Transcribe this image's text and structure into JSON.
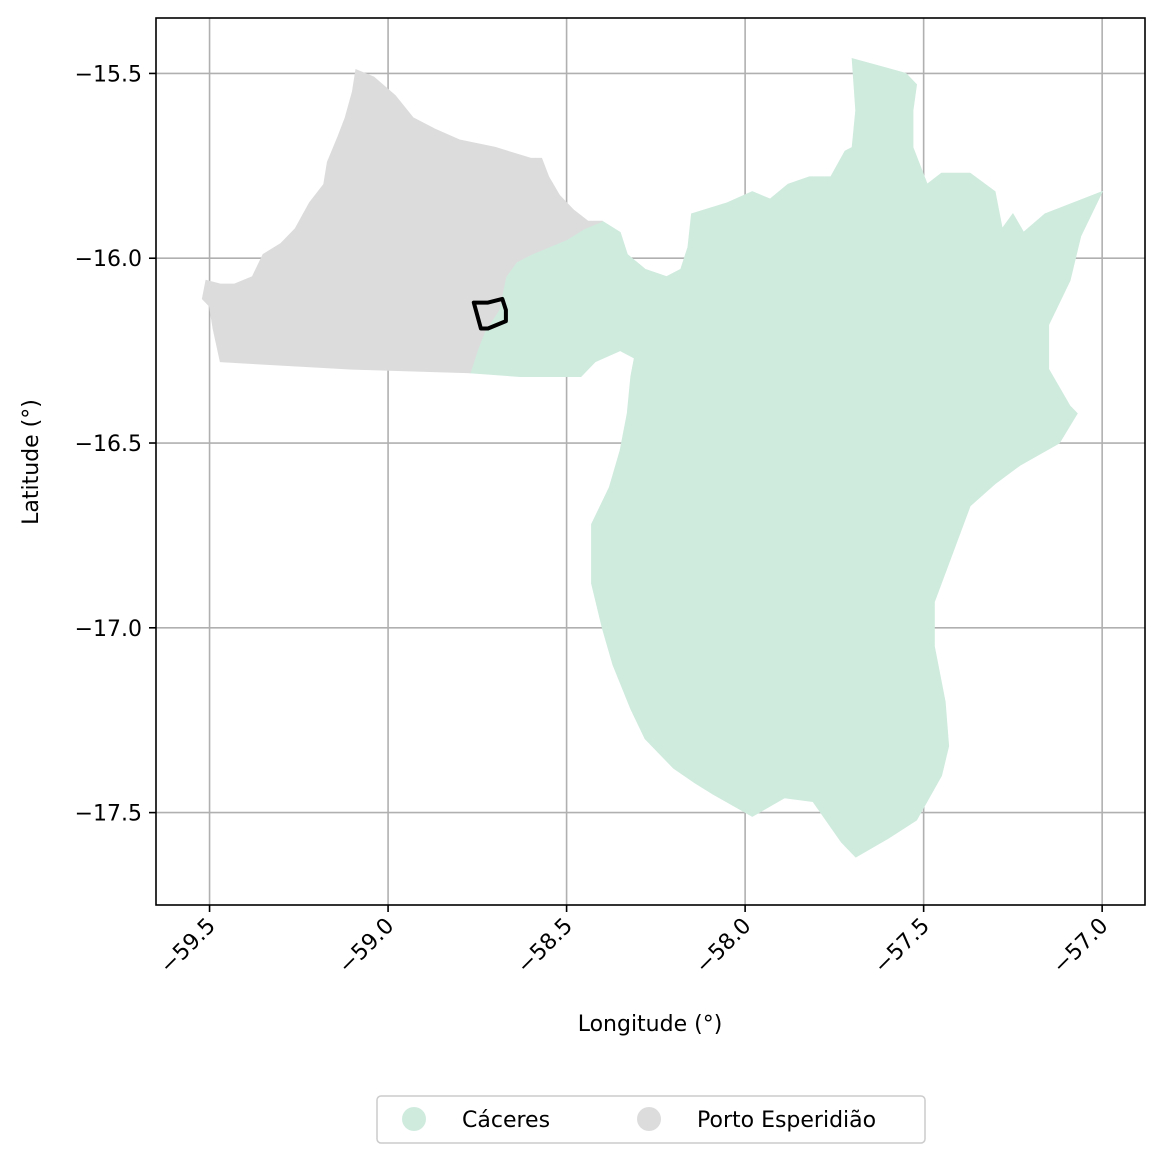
{
  "chart_data": {
    "type": "map",
    "xlabel": "Longitude (°)",
    "ylabel": "Latitude (°)",
    "xlim": [
      -59.65,
      -56.88
    ],
    "ylim": [
      -17.75,
      -15.35
    ],
    "x_ticks": [
      -59.5,
      -59.0,
      -58.5,
      -58.0,
      -57.5,
      -57.0
    ],
    "x_tick_labels": [
      "−59.5",
      "−59.0",
      "−58.5",
      "−58.0",
      "−57.5",
      "−57.0"
    ],
    "y_ticks": [
      -15.5,
      -16.0,
      -16.5,
      -17.0,
      -17.5
    ],
    "y_tick_labels": [
      "−15.5",
      "−16.0",
      "−16.5",
      "−17.0",
      "−17.5"
    ],
    "grid": true,
    "legend_position": "bottom-center",
    "regions": [
      {
        "name": "Cáceres",
        "color": "#cfebde",
        "coords": [
          [
            -58.77,
            -16.31
          ],
          [
            -58.75,
            -16.25
          ],
          [
            -58.73,
            -16.2
          ],
          [
            -58.69,
            -16.14
          ],
          [
            -58.67,
            -16.05
          ],
          [
            -58.64,
            -16.01
          ],
          [
            -58.6,
            -15.99
          ],
          [
            -58.5,
            -15.95
          ],
          [
            -58.45,
            -15.92
          ],
          [
            -58.4,
            -15.9
          ],
          [
            -58.35,
            -15.93
          ],
          [
            -58.33,
            -15.99
          ],
          [
            -58.28,
            -16.03
          ],
          [
            -58.22,
            -16.05
          ],
          [
            -58.18,
            -16.03
          ],
          [
            -58.16,
            -15.97
          ],
          [
            -58.15,
            -15.88
          ],
          [
            -58.05,
            -15.85
          ],
          [
            -57.98,
            -15.82
          ],
          [
            -57.93,
            -15.84
          ],
          [
            -57.88,
            -15.8
          ],
          [
            -57.82,
            -15.78
          ],
          [
            -57.76,
            -15.78
          ],
          [
            -57.72,
            -15.71
          ],
          [
            -57.7,
            -15.7
          ],
          [
            -57.69,
            -15.6
          ],
          [
            -57.7,
            -15.46
          ],
          [
            -57.55,
            -15.5
          ],
          [
            -57.52,
            -15.53
          ],
          [
            -57.53,
            -15.6
          ],
          [
            -57.53,
            -15.7
          ],
          [
            -57.49,
            -15.8
          ],
          [
            -57.45,
            -15.77
          ],
          [
            -57.37,
            -15.77
          ],
          [
            -57.3,
            -15.82
          ],
          [
            -57.28,
            -15.92
          ],
          [
            -57.25,
            -15.88
          ],
          [
            -57.22,
            -15.93
          ],
          [
            -57.16,
            -15.88
          ],
          [
            -57.0,
            -15.82
          ],
          [
            -57.06,
            -15.94
          ],
          [
            -57.09,
            -16.06
          ],
          [
            -57.15,
            -16.18
          ],
          [
            -57.15,
            -16.3
          ],
          [
            -57.09,
            -16.4
          ],
          [
            -57.07,
            -16.42
          ],
          [
            -57.12,
            -16.5
          ],
          [
            -57.23,
            -16.56
          ],
          [
            -57.3,
            -16.61
          ],
          [
            -57.37,
            -16.67
          ],
          [
            -57.42,
            -16.8
          ],
          [
            -57.47,
            -16.93
          ],
          [
            -57.47,
            -17.05
          ],
          [
            -57.44,
            -17.2
          ],
          [
            -57.43,
            -17.32
          ],
          [
            -57.45,
            -17.4
          ],
          [
            -57.52,
            -17.52
          ],
          [
            -57.6,
            -17.57
          ],
          [
            -57.69,
            -17.62
          ],
          [
            -57.73,
            -17.58
          ],
          [
            -57.81,
            -17.47
          ],
          [
            -57.89,
            -17.46
          ],
          [
            -57.98,
            -17.51
          ],
          [
            -58.09,
            -17.45
          ],
          [
            -58.14,
            -17.42
          ],
          [
            -58.2,
            -17.38
          ],
          [
            -58.28,
            -17.3
          ],
          [
            -58.32,
            -17.22
          ],
          [
            -58.37,
            -17.1
          ],
          [
            -58.4,
            -17.0
          ],
          [
            -58.43,
            -16.88
          ],
          [
            -58.43,
            -16.72
          ],
          [
            -58.38,
            -16.62
          ],
          [
            -58.35,
            -16.52
          ],
          [
            -58.33,
            -16.42
          ],
          [
            -58.32,
            -16.32
          ],
          [
            -58.31,
            -16.27
          ],
          [
            -58.35,
            -16.25
          ],
          [
            -58.42,
            -16.28
          ],
          [
            -58.46,
            -16.32
          ],
          [
            -58.55,
            -16.32
          ],
          [
            -58.63,
            -16.32
          ]
        ]
      },
      {
        "name": "Porto Esperidião",
        "color": "#dcdcdc",
        "coords": [
          [
            -59.47,
            -16.28
          ],
          [
            -59.49,
            -16.19
          ],
          [
            -59.5,
            -16.13
          ],
          [
            -59.52,
            -16.11
          ],
          [
            -59.51,
            -16.06
          ],
          [
            -59.47,
            -16.07
          ],
          [
            -59.43,
            -16.07
          ],
          [
            -59.38,
            -16.05
          ],
          [
            -59.35,
            -15.99
          ],
          [
            -59.3,
            -15.96
          ],
          [
            -59.26,
            -15.92
          ],
          [
            -59.22,
            -15.85
          ],
          [
            -59.18,
            -15.8
          ],
          [
            -59.17,
            -15.74
          ],
          [
            -59.14,
            -15.67
          ],
          [
            -59.12,
            -15.62
          ],
          [
            -59.1,
            -15.55
          ],
          [
            -59.09,
            -15.49
          ],
          [
            -59.04,
            -15.51
          ],
          [
            -58.98,
            -15.56
          ],
          [
            -58.93,
            -15.62
          ],
          [
            -58.87,
            -15.65
          ],
          [
            -58.8,
            -15.68
          ],
          [
            -58.7,
            -15.7
          ],
          [
            -58.6,
            -15.73
          ],
          [
            -58.57,
            -15.73
          ],
          [
            -58.55,
            -15.78
          ],
          [
            -58.52,
            -15.83
          ],
          [
            -58.48,
            -15.87
          ],
          [
            -58.44,
            -15.9
          ],
          [
            -58.4,
            -15.9
          ],
          [
            -58.45,
            -15.92
          ],
          [
            -58.5,
            -15.95
          ],
          [
            -58.6,
            -15.99
          ],
          [
            -58.64,
            -16.01
          ],
          [
            -58.67,
            -16.05
          ],
          [
            -58.69,
            -16.14
          ],
          [
            -58.73,
            -16.2
          ],
          [
            -58.75,
            -16.25
          ],
          [
            -58.77,
            -16.31
          ],
          [
            -59.1,
            -16.3
          ]
        ]
      }
    ],
    "highlight_outline": {
      "color": "#000000",
      "coords": [
        [
          -58.76,
          -16.12
        ],
        [
          -58.72,
          -16.12
        ],
        [
          -58.68,
          -16.11
        ],
        [
          -58.67,
          -16.14
        ],
        [
          -58.67,
          -16.17
        ],
        [
          -58.72,
          -16.19
        ],
        [
          -58.74,
          -16.19
        ]
      ]
    },
    "legend": [
      {
        "label": "Cáceres",
        "color": "#cfebde"
      },
      {
        "label": "Porto Esperidião",
        "color": "#dcdcdc"
      }
    ]
  }
}
